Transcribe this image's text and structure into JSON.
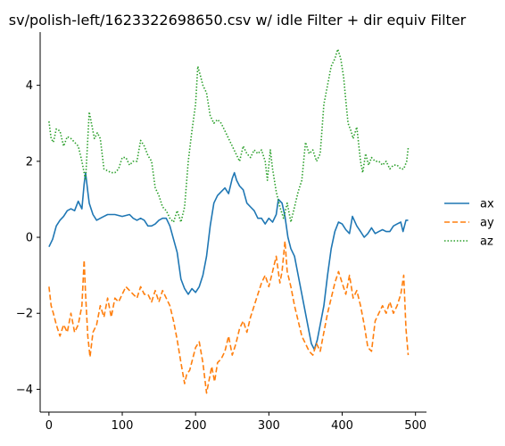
{
  "chart_data": {
    "type": "line",
    "title": "sv/polish-left/1623322698650.csv w/ idle Filter + dir equiv Filter",
    "xlabel": "",
    "ylabel": "",
    "xlim": [
      -12,
      515
    ],
    "ylim": [
      -4.6,
      5.4
    ],
    "xticks": [
      0,
      100,
      200,
      300,
      400,
      500
    ],
    "yticks": [
      -4,
      -2,
      0,
      2,
      4
    ],
    "xtick_labels": [
      "0",
      "100",
      "200",
      "300",
      "400",
      "500"
    ],
    "ytick_labels": [
      "−4",
      "−2",
      "0",
      "2",
      "4"
    ],
    "grid": false,
    "legend_position": "right",
    "series": [
      {
        "name": "ax",
        "color": "#1f77b4",
        "dash": "solid",
        "points": [
          [
            0,
            -0.25
          ],
          [
            5,
            -0.05
          ],
          [
            10,
            0.3
          ],
          [
            15,
            0.45
          ],
          [
            20,
            0.55
          ],
          [
            25,
            0.7
          ],
          [
            30,
            0.75
          ],
          [
            35,
            0.7
          ],
          [
            40,
            0.95
          ],
          [
            45,
            0.75
          ],
          [
            48,
            1.4
          ],
          [
            50,
            1.7
          ],
          [
            53,
            1.2
          ],
          [
            55,
            0.9
          ],
          [
            60,
            0.6
          ],
          [
            65,
            0.45
          ],
          [
            70,
            0.5
          ],
          [
            75,
            0.55
          ],
          [
            80,
            0.6
          ],
          [
            90,
            0.6
          ],
          [
            100,
            0.55
          ],
          [
            110,
            0.6
          ],
          [
            115,
            0.5
          ],
          [
            120,
            0.45
          ],
          [
            125,
            0.5
          ],
          [
            130,
            0.45
          ],
          [
            135,
            0.3
          ],
          [
            140,
            0.3
          ],
          [
            145,
            0.35
          ],
          [
            150,
            0.45
          ],
          [
            155,
            0.5
          ],
          [
            160,
            0.5
          ],
          [
            165,
            0.3
          ],
          [
            170,
            -0.05
          ],
          [
            175,
            -0.4
          ],
          [
            180,
            -1.1
          ],
          [
            185,
            -1.35
          ],
          [
            190,
            -1.5
          ],
          [
            195,
            -1.35
          ],
          [
            200,
            -1.45
          ],
          [
            205,
            -1.3
          ],
          [
            210,
            -1.0
          ],
          [
            215,
            -0.5
          ],
          [
            220,
            0.3
          ],
          [
            225,
            0.9
          ],
          [
            230,
            1.1
          ],
          [
            235,
            1.2
          ],
          [
            240,
            1.3
          ],
          [
            245,
            1.15
          ],
          [
            250,
            1.55
          ],
          [
            253,
            1.7
          ],
          [
            256,
            1.5
          ],
          [
            260,
            1.35
          ],
          [
            265,
            1.25
          ],
          [
            270,
            0.9
          ],
          [
            275,
            0.8
          ],
          [
            280,
            0.7
          ],
          [
            285,
            0.5
          ],
          [
            290,
            0.5
          ],
          [
            295,
            0.35
          ],
          [
            300,
            0.5
          ],
          [
            305,
            0.4
          ],
          [
            310,
            0.6
          ],
          [
            313,
            1.0
          ],
          [
            318,
            0.9
          ],
          [
            322,
            0.55
          ],
          [
            326,
            0.0
          ],
          [
            330,
            -0.3
          ],
          [
            335,
            -0.5
          ],
          [
            340,
            -1.0
          ],
          [
            345,
            -1.5
          ],
          [
            350,
            -2.0
          ],
          [
            355,
            -2.5
          ],
          [
            358,
            -2.8
          ],
          [
            362,
            -2.95
          ],
          [
            366,
            -2.7
          ],
          [
            370,
            -2.3
          ],
          [
            375,
            -1.8
          ],
          [
            380,
            -1.0
          ],
          [
            385,
            -0.3
          ],
          [
            390,
            0.15
          ],
          [
            395,
            0.4
          ],
          [
            400,
            0.35
          ],
          [
            405,
            0.2
          ],
          [
            410,
            0.1
          ],
          [
            414,
            0.55
          ],
          [
            420,
            0.3
          ],
          [
            425,
            0.15
          ],
          [
            430,
            0.0
          ],
          [
            435,
            0.1
          ],
          [
            440,
            0.25
          ],
          [
            445,
            0.1
          ],
          [
            450,
            0.15
          ],
          [
            455,
            0.2
          ],
          [
            460,
            0.15
          ],
          [
            465,
            0.15
          ],
          [
            470,
            0.3
          ],
          [
            475,
            0.35
          ],
          [
            480,
            0.4
          ],
          [
            483,
            0.15
          ],
          [
            487,
            0.45
          ],
          [
            490,
            0.45
          ]
        ]
      },
      {
        "name": "ay",
        "color": "#ff7f0e",
        "dash": "dashed",
        "points": [
          [
            0,
            -1.3
          ],
          [
            3,
            -1.8
          ],
          [
            6,
            -2.0
          ],
          [
            10,
            -2.3
          ],
          [
            15,
            -2.6
          ],
          [
            20,
            -2.3
          ],
          [
            25,
            -2.5
          ],
          [
            30,
            -2.0
          ],
          [
            35,
            -2.5
          ],
          [
            40,
            -2.3
          ],
          [
            45,
            -1.8
          ],
          [
            48,
            -0.6
          ],
          [
            50,
            -1.5
          ],
          [
            53,
            -2.6
          ],
          [
            56,
            -3.15
          ],
          [
            60,
            -2.5
          ],
          [
            65,
            -2.3
          ],
          [
            70,
            -1.8
          ],
          [
            75,
            -2.1
          ],
          [
            80,
            -1.6
          ],
          [
            85,
            -2.1
          ],
          [
            90,
            -1.6
          ],
          [
            95,
            -1.7
          ],
          [
            100,
            -1.5
          ],
          [
            105,
            -1.3
          ],
          [
            110,
            -1.4
          ],
          [
            115,
            -1.5
          ],
          [
            120,
            -1.6
          ],
          [
            125,
            -1.3
          ],
          [
            130,
            -1.5
          ],
          [
            135,
            -1.5
          ],
          [
            140,
            -1.7
          ],
          [
            145,
            -1.4
          ],
          [
            150,
            -1.7
          ],
          [
            155,
            -1.4
          ],
          [
            160,
            -1.6
          ],
          [
            165,
            -1.8
          ],
          [
            170,
            -2.2
          ],
          [
            175,
            -2.7
          ],
          [
            180,
            -3.3
          ],
          [
            185,
            -3.85
          ],
          [
            188,
            -3.6
          ],
          [
            192,
            -3.5
          ],
          [
            196,
            -3.2
          ],
          [
            200,
            -2.9
          ],
          [
            205,
            -2.75
          ],
          [
            210,
            -3.3
          ],
          [
            215,
            -4.1
          ],
          [
            218,
            -3.8
          ],
          [
            222,
            -3.4
          ],
          [
            226,
            -3.8
          ],
          [
            230,
            -3.3
          ],
          [
            235,
            -3.2
          ],
          [
            240,
            -3.0
          ],
          [
            245,
            -2.6
          ],
          [
            250,
            -3.1
          ],
          [
            255,
            -2.8
          ],
          [
            260,
            -2.4
          ],
          [
            265,
            -2.2
          ],
          [
            270,
            -2.5
          ],
          [
            275,
            -2.1
          ],
          [
            280,
            -1.8
          ],
          [
            285,
            -1.5
          ],
          [
            290,
            -1.2
          ],
          [
            295,
            -1.0
          ],
          [
            300,
            -1.3
          ],
          [
            305,
            -0.9
          ],
          [
            310,
            -0.5
          ],
          [
            315,
            -1.2
          ],
          [
            318,
            -0.9
          ],
          [
            322,
            -0.1
          ],
          [
            325,
            -0.9
          ],
          [
            330,
            -1.3
          ],
          [
            335,
            -1.8
          ],
          [
            340,
            -2.2
          ],
          [
            345,
            -2.6
          ],
          [
            350,
            -2.8
          ],
          [
            355,
            -3.0
          ],
          [
            360,
            -3.1
          ],
          [
            365,
            -2.8
          ],
          [
            370,
            -3.0
          ],
          [
            375,
            -2.5
          ],
          [
            380,
            -2.0
          ],
          [
            385,
            -1.6
          ],
          [
            390,
            -1.2
          ],
          [
            395,
            -0.9
          ],
          [
            400,
            -1.2
          ],
          [
            405,
            -1.5
          ],
          [
            410,
            -1.0
          ],
          [
            415,
            -1.6
          ],
          [
            420,
            -1.4
          ],
          [
            425,
            -1.8
          ],
          [
            430,
            -2.3
          ],
          [
            435,
            -2.9
          ],
          [
            440,
            -3.0
          ],
          [
            445,
            -2.2
          ],
          [
            450,
            -2.0
          ],
          [
            455,
            -1.8
          ],
          [
            460,
            -2.0
          ],
          [
            465,
            -1.7
          ],
          [
            470,
            -2.0
          ],
          [
            475,
            -1.8
          ],
          [
            480,
            -1.5
          ],
          [
            484,
            -1.0
          ],
          [
            487,
            -2.4
          ],
          [
            490,
            -3.1
          ]
        ]
      },
      {
        "name": "az",
        "color": "#2ca02c",
        "dash": "dotted",
        "points": [
          [
            0,
            3.05
          ],
          [
            3,
            2.6
          ],
          [
            6,
            2.5
          ],
          [
            10,
            2.85
          ],
          [
            15,
            2.8
          ],
          [
            20,
            2.4
          ],
          [
            25,
            2.65
          ],
          [
            30,
            2.6
          ],
          [
            35,
            2.5
          ],
          [
            40,
            2.4
          ],
          [
            45,
            2.0
          ],
          [
            50,
            1.5
          ],
          [
            55,
            3.3
          ],
          [
            58,
            3.0
          ],
          [
            62,
            2.6
          ],
          [
            66,
            2.75
          ],
          [
            70,
            2.6
          ],
          [
            75,
            1.8
          ],
          [
            80,
            1.75
          ],
          [
            85,
            1.7
          ],
          [
            90,
            1.7
          ],
          [
            95,
            1.8
          ],
          [
            100,
            2.1
          ],
          [
            105,
            2.1
          ],
          [
            110,
            1.9
          ],
          [
            115,
            2.0
          ],
          [
            120,
            2.0
          ],
          [
            125,
            2.55
          ],
          [
            130,
            2.4
          ],
          [
            135,
            2.15
          ],
          [
            140,
            2.0
          ],
          [
            145,
            1.3
          ],
          [
            150,
            1.1
          ],
          [
            155,
            0.8
          ],
          [
            160,
            0.7
          ],
          [
            165,
            0.5
          ],
          [
            170,
            0.4
          ],
          [
            175,
            0.7
          ],
          [
            180,
            0.4
          ],
          [
            185,
            0.8
          ],
          [
            190,
            2.0
          ],
          [
            195,
            2.8
          ],
          [
            200,
            3.5
          ],
          [
            203,
            4.5
          ],
          [
            206,
            4.3
          ],
          [
            210,
            4.0
          ],
          [
            215,
            3.8
          ],
          [
            220,
            3.2
          ],
          [
            225,
            3.0
          ],
          [
            230,
            3.1
          ],
          [
            235,
            3.0
          ],
          [
            240,
            2.8
          ],
          [
            245,
            2.6
          ],
          [
            250,
            2.4
          ],
          [
            255,
            2.2
          ],
          [
            260,
            2.0
          ],
          [
            265,
            2.4
          ],
          [
            270,
            2.2
          ],
          [
            275,
            2.1
          ],
          [
            280,
            2.3
          ],
          [
            285,
            2.2
          ],
          [
            290,
            2.3
          ],
          [
            295,
            2.0
          ],
          [
            298,
            1.5
          ],
          [
            302,
            2.3
          ],
          [
            305,
            1.8
          ],
          [
            310,
            1.2
          ],
          [
            315,
            0.8
          ],
          [
            320,
            0.5
          ],
          [
            325,
            0.9
          ],
          [
            330,
            0.4
          ],
          [
            335,
            0.8
          ],
          [
            340,
            1.2
          ],
          [
            345,
            1.5
          ],
          [
            350,
            2.5
          ],
          [
            355,
            2.2
          ],
          [
            360,
            2.3
          ],
          [
            365,
            2.0
          ],
          [
            370,
            2.2
          ],
          [
            375,
            3.5
          ],
          [
            380,
            4.0
          ],
          [
            385,
            4.5
          ],
          [
            390,
            4.7
          ],
          [
            394,
            4.95
          ],
          [
            398,
            4.7
          ],
          [
            402,
            4.2
          ],
          [
            405,
            3.6
          ],
          [
            408,
            3.0
          ],
          [
            412,
            2.8
          ],
          [
            415,
            2.6
          ],
          [
            420,
            2.9
          ],
          [
            425,
            2.0
          ],
          [
            428,
            1.7
          ],
          [
            432,
            2.2
          ],
          [
            436,
            1.9
          ],
          [
            440,
            2.1
          ],
          [
            445,
            2.0
          ],
          [
            450,
            2.0
          ],
          [
            455,
            1.9
          ],
          [
            460,
            2.0
          ],
          [
            465,
            1.8
          ],
          [
            470,
            1.9
          ],
          [
            475,
            1.9
          ],
          [
            480,
            1.8
          ],
          [
            484,
            1.8
          ],
          [
            488,
            2.0
          ],
          [
            490,
            2.35
          ]
        ]
      }
    ]
  }
}
